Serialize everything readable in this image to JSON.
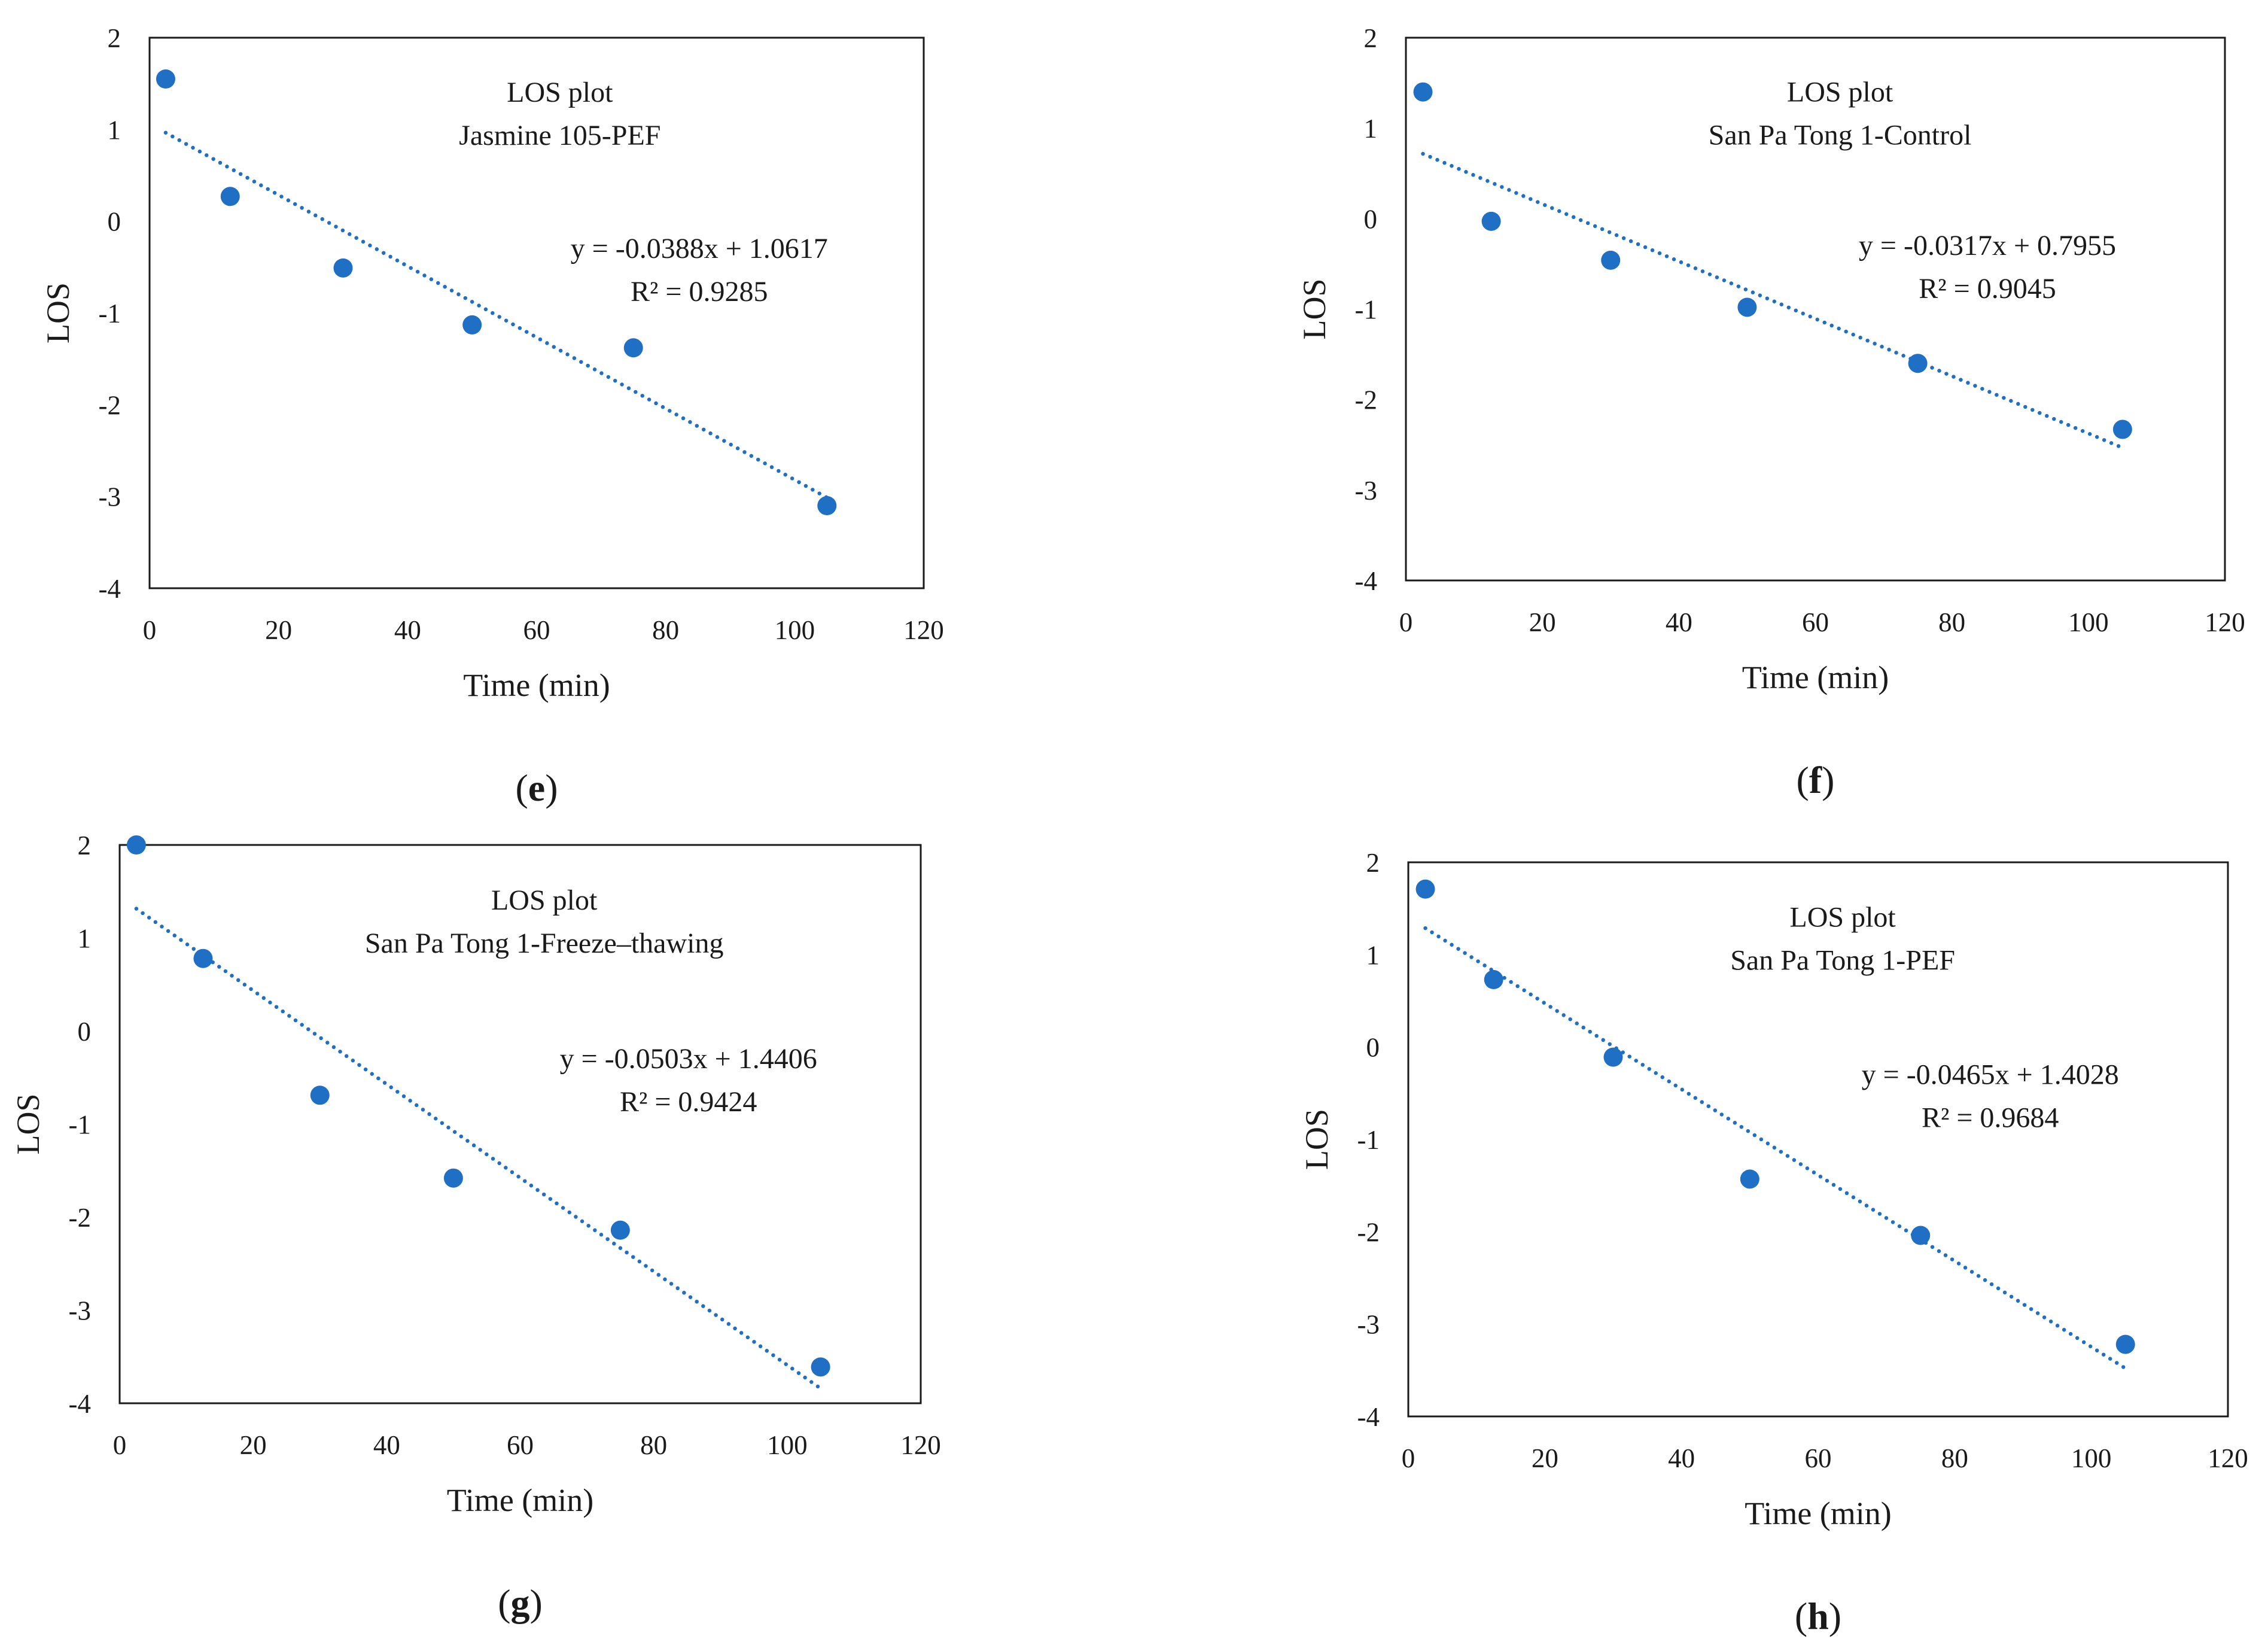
{
  "colors": {
    "marker": "#1f6fc5",
    "trendline": "#1f6fc5",
    "frame": "#1a1a1a",
    "background": "#ffffff"
  },
  "chart_data": [
    {
      "type": "scatter",
      "panel": "e",
      "title": "LOS plot",
      "subtitle": "Jasmine 105-PEF",
      "xlabel": "Time (min)",
      "ylabel": "LOS",
      "xlim": [
        0,
        120
      ],
      "ylim": [
        -4,
        2
      ],
      "xticks": [
        0,
        20,
        40,
        60,
        80,
        100,
        120
      ],
      "yticks": [
        2,
        1,
        0,
        -1,
        -2,
        -3,
        -4
      ],
      "series": [
        {
          "name": "LOS",
          "x": [
            2.5,
            12.5,
            30,
            50,
            75,
            105
          ],
          "y": [
            1.55,
            0.27,
            -0.51,
            -1.13,
            -1.38,
            -3.1
          ]
        }
      ],
      "trendline": {
        "type": "linear",
        "slope": -0.0388,
        "intercept": 1.0617,
        "x_range": [
          2.5,
          105
        ]
      },
      "equation": "y = -0.0388x + 1.0617",
      "r2_label": "R² = 0.9285",
      "panel_label": "e"
    },
    {
      "type": "scatter",
      "panel": "f",
      "title": "LOS plot",
      "subtitle": "San Pa Tong 1-Control",
      "xlabel": "Time (min)",
      "ylabel": "LOS",
      "xlim": [
        0,
        120
      ],
      "ylim": [
        -4,
        2
      ],
      "xticks": [
        0,
        20,
        40,
        60,
        80,
        100,
        120
      ],
      "yticks": [
        2,
        1,
        0,
        -1,
        -2,
        -3,
        -4
      ],
      "series": [
        {
          "name": "LOS",
          "x": [
            2.5,
            12.5,
            30,
            50,
            75,
            105
          ],
          "y": [
            1.4,
            -0.03,
            -0.46,
            -0.98,
            -1.6,
            -2.33
          ]
        }
      ],
      "trendline": {
        "type": "linear",
        "slope": -0.0317,
        "intercept": 0.7955,
        "x_range": [
          2.5,
          105
        ]
      },
      "equation": "y = -0.0317x + 0.7955",
      "r2_label": "R² = 0.9045",
      "panel_label": "f"
    },
    {
      "type": "scatter",
      "panel": "g",
      "title": "LOS plot",
      "subtitle": "San Pa Tong 1-Freeze–thawing",
      "xlabel": "Time (min)",
      "ylabel": "LOS",
      "xlim": [
        0,
        120
      ],
      "ylim": [
        -4,
        2
      ],
      "xticks": [
        0,
        20,
        40,
        60,
        80,
        100,
        120
      ],
      "yticks": [
        2,
        1,
        0,
        -1,
        -2,
        -3,
        -4
      ],
      "series": [
        {
          "name": "LOS",
          "x": [
            2.5,
            12.5,
            30,
            50,
            75,
            105
          ],
          "y": [
            2.0,
            0.78,
            -0.69,
            -1.58,
            -2.14,
            -3.61
          ]
        }
      ],
      "trendline": {
        "type": "linear",
        "slope": -0.0503,
        "intercept": 1.4406,
        "x_range": [
          2.5,
          105
        ]
      },
      "equation": "y = -0.0503x + 1.4406",
      "r2_label": "R² = 0.9424",
      "panel_label": "g"
    },
    {
      "type": "scatter",
      "panel": "h",
      "title": "LOS plot",
      "subtitle": "San Pa Tong 1-PEF",
      "xlabel": "Time (min)",
      "ylabel": "LOS",
      "xlim": [
        0,
        120
      ],
      "ylim": [
        -4,
        2
      ],
      "xticks": [
        0,
        20,
        40,
        60,
        80,
        100,
        120
      ],
      "yticks": [
        2,
        1,
        0,
        -1,
        -2,
        -3,
        -4
      ],
      "series": [
        {
          "name": "LOS",
          "x": [
            2.5,
            12.5,
            30,
            50,
            75,
            105
          ],
          "y": [
            1.71,
            0.73,
            -0.11,
            -1.43,
            -2.04,
            -3.22
          ]
        }
      ],
      "trendline": {
        "type": "linear",
        "slope": -0.0465,
        "intercept": 1.4028,
        "x_range": [
          2.5,
          105
        ]
      },
      "equation": "y = -0.0465x + 1.4028",
      "r2_label": "R² = 0.9684",
      "panel_label": "h"
    }
  ]
}
